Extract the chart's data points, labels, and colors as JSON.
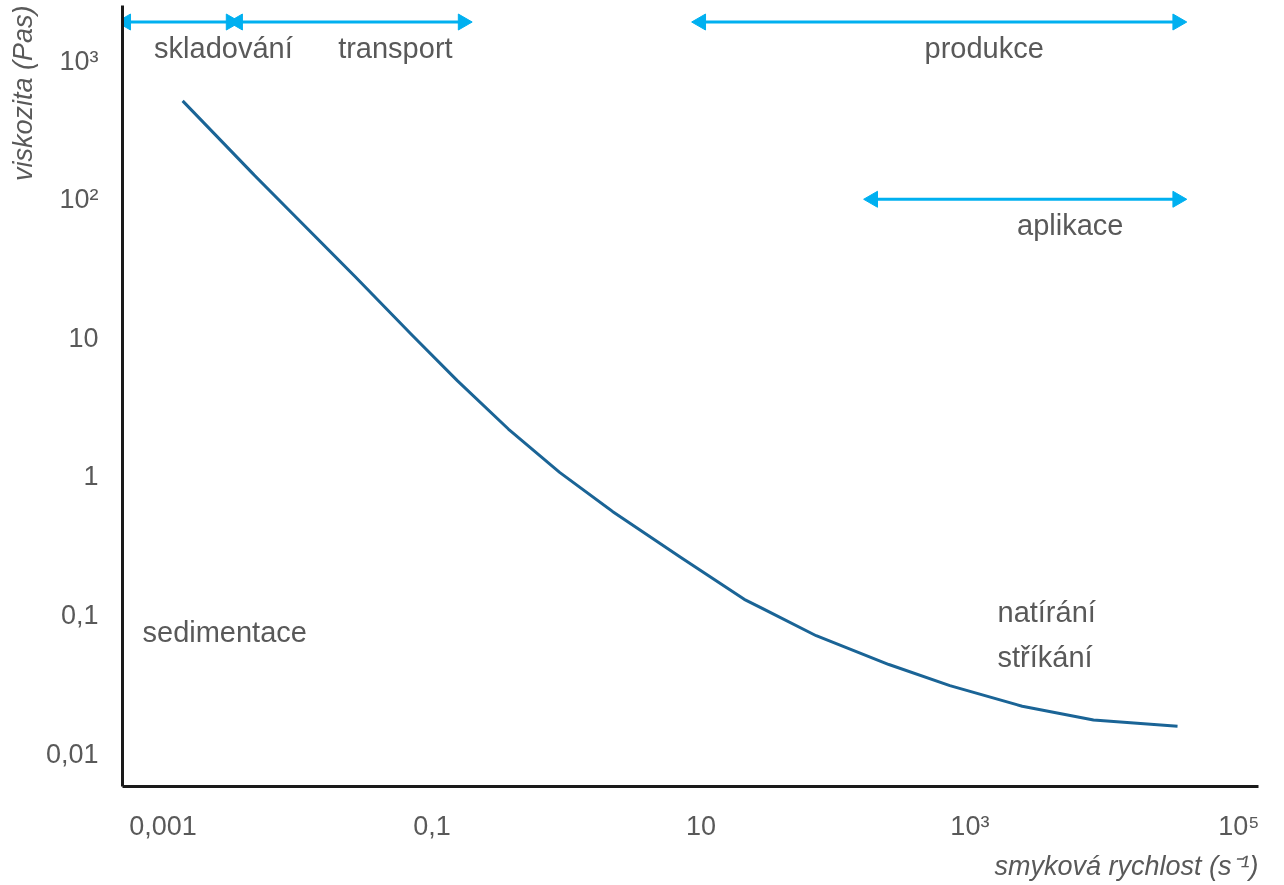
{
  "chart_data": {
    "type": "line",
    "xlabel": "smyková rychlost (s⁻¹)",
    "ylabel": "viskozita (Pas)",
    "log": "xy",
    "grid": false,
    "legend": false,
    "marker": "none",
    "line_style": "solid",
    "xlim": [
      0.0005,
      140000
    ],
    "ylim": [
      0.0058,
      2500
    ],
    "xticks": [
      {
        "value": 0.001,
        "label": "0,001"
      },
      {
        "value": 0.1,
        "label": "0,1"
      },
      10,
      {
        "value": 1000,
        "label": "10³"
      },
      {
        "value": 100000,
        "label": "10⁵"
      }
    ],
    "yticks": [
      {
        "value": 0.01,
        "label": "0,01"
      },
      {
        "value": 0.1,
        "label": "0,1"
      },
      1,
      10,
      {
        "value": 100,
        "label": "10²"
      },
      {
        "value": 1000,
        "label": "10³"
      }
    ],
    "series": [
      {
        "color": "#1a6496",
        "x": [
          0.0014,
          0.0046,
          0.011,
          0.027,
          0.071,
          0.155,
          0.37,
          0.89,
          2.2,
          7.1,
          21,
          72,
          250,
          710,
          2450,
          8300,
          35000
        ],
        "values": [
          513,
          155,
          66,
          27.5,
          10.5,
          4.9,
          2.2,
          1.07,
          0.56,
          0.26,
          0.13,
          0.071,
          0.044,
          0.031,
          0.022,
          0.0175,
          0.0158
        ]
      },
      {
        "name": "skladování",
        "color": "#00b0f0",
        "marker": "triangle",
        "x": [
          0.00053,
          0.0032
        ],
        "values": [
          1900,
          1900
        ]
      },
      {
        "name": "transport",
        "color": "#00b0f0",
        "marker": "triangle",
        "x": [
          0.0036,
          0.17
        ],
        "values": [
          1900,
          1900
        ]
      },
      {
        "name": "produkce",
        "color": "#00b0f0",
        "marker": "triangle",
        "x": [
          10,
          35000
        ],
        "values": [
          1900,
          1900
        ]
      },
      {
        "name": "aplikace",
        "color": "#00b0f0",
        "marker": "triangle",
        "x": [
          190,
          35000
        ],
        "values": [
          100,
          100
        ]
      }
    ],
    "annotations": [
      "sedimentace",
      "natírání",
      "stříkání"
    ]
  }
}
